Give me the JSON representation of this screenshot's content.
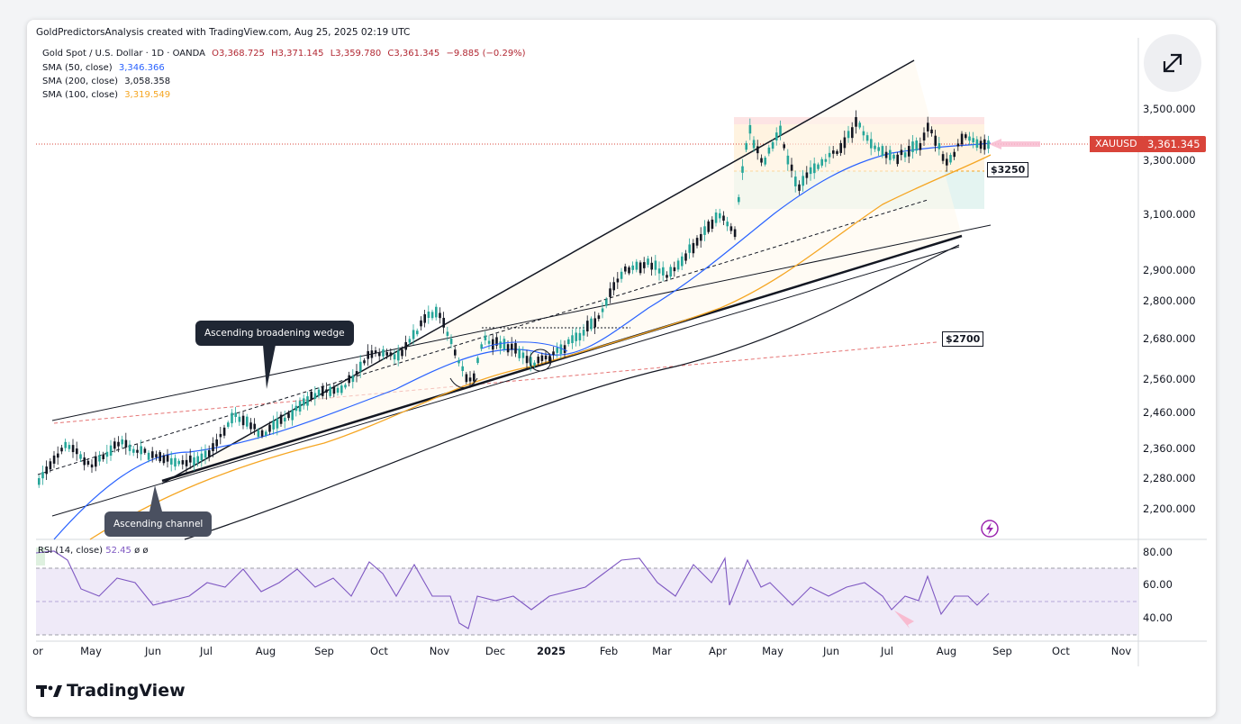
{
  "attribution": "GoldPredictorsAnalysis created with TradingView.com, Aug 25, 2025 02:19 UTC",
  "legend": {
    "symbol_line": "Gold Spot / U.S. Dollar · 1D · OANDA",
    "open": "O3,368.725",
    "high": "H3,371.145",
    "low": "L3,359.780",
    "close": "C3,361.345",
    "change": "−9.885 (−0.29%)",
    "sma50_label": "SMA (50, close)",
    "sma50_value": "3,346.366",
    "sma200_label": "SMA (200, close)",
    "sma200_value": "3,058.358",
    "sma100_label": "SMA (100, close)",
    "sma100_value": "3,319.549"
  },
  "colors": {
    "sma50": "#2962ff",
    "sma200": "#131722",
    "sma100": "#f5a623",
    "up_candle": "#26a69a",
    "down_candle": "#131722",
    "rsi": "#7e57c2",
    "price_tag": "#d9443a"
  },
  "price_axis": {
    "ticks": [
      "3,500.000",
      "3,300.000",
      "3,100.000",
      "2,900.000",
      "2,800.000",
      "2,680.000",
      "2,560.000",
      "2,460.000",
      "2,360.000",
      "2,280.000",
      "2,200.000"
    ],
    "scale": "log"
  },
  "rsi_axis": {
    "ticks": [
      "80.00",
      "60.00",
      "40.00"
    ]
  },
  "time_axis": {
    "labels": [
      "or",
      "May",
      "Jun",
      "Jul",
      "Aug",
      "Sep",
      "Oct",
      "Nov",
      "Dec",
      "2025",
      "Feb",
      "Mar",
      "Apr",
      "May",
      "Jun",
      "Jul",
      "Aug",
      "Sep",
      "Oct",
      "Nov"
    ]
  },
  "symbol_tag": "XAUUSD",
  "price_tag": "3,361.345",
  "annotations": {
    "wedge_callout": "Ascending broadening wedge",
    "channel_callout": "Ascending channel",
    "level_3250": "$3250",
    "level_2700": "$2700"
  },
  "rsi": {
    "label": "RSI (14, close)",
    "value": "52.45",
    "extra1": "ø",
    "extra2": "ø"
  },
  "icons": {
    "expand": "expand-arrows-icon",
    "lightning": "lightning-icon",
    "logo": "tradingview-logo-icon"
  },
  "brand": "TradingView"
}
